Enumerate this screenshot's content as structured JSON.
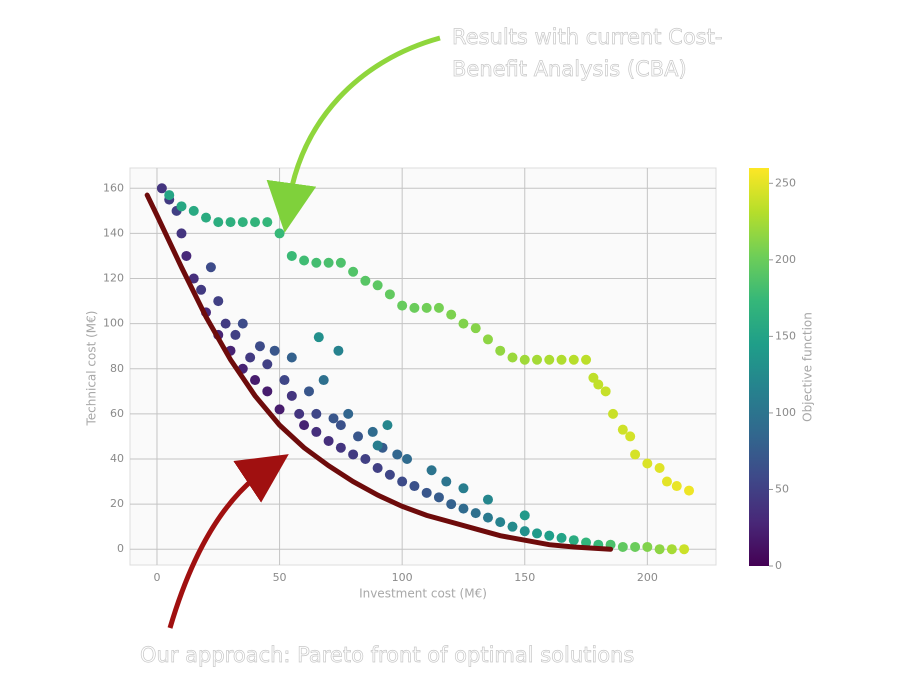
{
  "chart_data": {
    "type": "scatter",
    "annotations": [
      "Results with current Cost-",
      "Benefit Analysis (CBA)",
      "Our approach: Pareto front of optimal solutions"
    ],
    "x_label": "Investment cost (M€)",
    "y_label": "Technical cost (M€)",
    "colorbar_label": "Objective function",
    "xlim": [
      -11,
      228
    ],
    "ylim": [
      -7,
      169
    ],
    "clim": [
      0,
      260
    ],
    "xticks": [
      0,
      50,
      100,
      150,
      200
    ],
    "yticks": [
      0,
      20,
      40,
      60,
      80,
      100,
      120,
      140,
      160
    ],
    "cticks": [
      0,
      50,
      100,
      150,
      200,
      250
    ],
    "grid": true,
    "colormap": "viridis",
    "points": {
      "x": [
        2,
        5,
        8,
        10,
        12,
        15,
        18,
        20,
        22,
        25,
        25,
        28,
        30,
        32,
        35,
        35,
        38,
        40,
        42,
        45,
        45,
        48,
        50,
        52,
        55,
        55,
        58,
        60,
        62,
        65,
        65,
        68,
        70,
        72,
        75,
        75,
        78,
        80,
        82,
        85,
        88,
        90,
        92,
        95,
        98,
        100,
        102,
        105,
        110,
        112,
        115,
        118,
        120,
        125,
        125,
        130,
        135,
        135,
        140,
        145,
        150,
        150,
        155,
        160,
        165,
        170,
        175,
        180,
        185,
        190,
        195,
        200,
        205,
        210,
        215,
        90,
        94,
        74,
        66
      ],
      "y": [
        160,
        155,
        150,
        140,
        130,
        120,
        115,
        105,
        125,
        95,
        110,
        100,
        88,
        95,
        80,
        100,
        85,
        75,
        90,
        70,
        82,
        88,
        62,
        75,
        68,
        85,
        60,
        55,
        70,
        52,
        60,
        75,
        48,
        58,
        45,
        55,
        60,
        42,
        50,
        40,
        52,
        36,
        45,
        33,
        42,
        30,
        40,
        28,
        25,
        35,
        23,
        30,
        20,
        18,
        27,
        16,
        14,
        22,
        12,
        10,
        8,
        15,
        7,
        6,
        5,
        4,
        3,
        2,
        2,
        1,
        1,
        1,
        0,
        0,
        0,
        46,
        55,
        88,
        94
      ],
      "c": [
        40,
        45,
        50,
        40,
        30,
        35,
        45,
        30,
        60,
        25,
        50,
        45,
        25,
        50,
        25,
        60,
        45,
        20,
        60,
        20,
        50,
        70,
        20,
        55,
        40,
        80,
        40,
        25,
        70,
        35,
        55,
        95,
        35,
        70,
        40,
        65,
        85,
        45,
        70,
        50,
        90,
        50,
        75,
        55,
        85,
        60,
        90,
        65,
        70,
        100,
        75,
        100,
        80,
        90,
        110,
        95,
        105,
        120,
        115,
        125,
        130,
        140,
        140,
        145,
        150,
        160,
        170,
        175,
        185,
        195,
        200,
        210,
        215,
        225,
        240,
        110,
        120,
        115,
        130
      ]
    },
    "cba": {
      "x": [
        5,
        10,
        15,
        20,
        25,
        30,
        35,
        40,
        45,
        50,
        55,
        60,
        65,
        70,
        75,
        80,
        85,
        90,
        95,
        100,
        105,
        110,
        115,
        120,
        125,
        130,
        135,
        140,
        145,
        150,
        155,
        160,
        165,
        170,
        175,
        178,
        180,
        183,
        186,
        190,
        193,
        195,
        200,
        205,
        208,
        212,
        217
      ],
      "y": [
        157,
        152,
        150,
        147,
        145,
        145,
        145,
        145,
        145,
        140,
        130,
        128,
        127,
        127,
        127,
        123,
        119,
        117,
        113,
        108,
        107,
        107,
        107,
        104,
        100,
        98,
        93,
        88,
        85,
        84,
        84,
        84,
        84,
        84,
        84,
        76,
        73,
        70,
        60,
        53,
        50,
        42,
        38,
        36,
        30,
        28,
        26
      ],
      "c": [
        152,
        155,
        157,
        160,
        162,
        164,
        167,
        169,
        172,
        174,
        176,
        179,
        181,
        184,
        186,
        188,
        191,
        193,
        196,
        198,
        200,
        203,
        205,
        208,
        210,
        212,
        215,
        217,
        220,
        222,
        224,
        227,
        229,
        232,
        234,
        235,
        236,
        238,
        239,
        241,
        243,
        244,
        246,
        248,
        250,
        252,
        254
      ]
    },
    "front": {
      "color": "#6e0b0b",
      "x": [
        -4,
        0,
        10,
        20,
        30,
        40,
        50,
        60,
        70,
        80,
        90,
        100,
        110,
        120,
        130,
        140,
        150,
        160,
        170,
        185
      ],
      "y": [
        157,
        148,
        125,
        103,
        84,
        68,
        55,
        45,
        37,
        30,
        24,
        19,
        15,
        12,
        9,
        6,
        4,
        2,
        1,
        0
      ]
    }
  }
}
